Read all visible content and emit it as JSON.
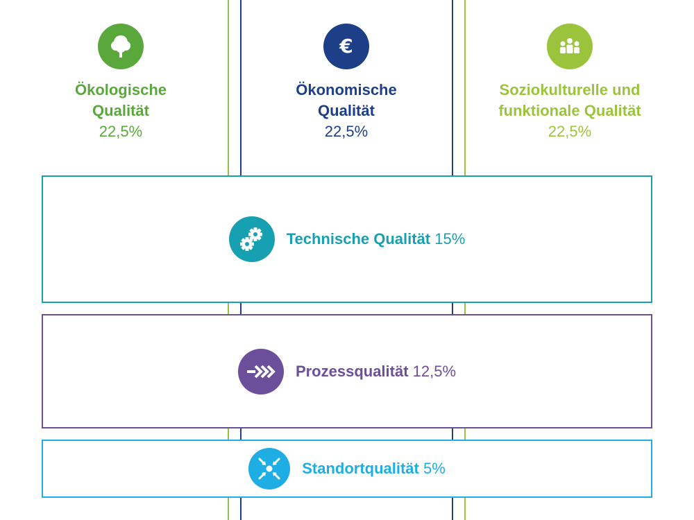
{
  "columns": [
    {
      "title_line1": "Ökologische",
      "title_line2": "Qualität",
      "percent": "22,5%",
      "icon": "tree-icon",
      "color": "#5aa83c"
    },
    {
      "title_line1": "Ökonomische",
      "title_line2": "Qualität",
      "percent": "22,5%",
      "icon": "euro-icon",
      "color": "#1c3f88"
    },
    {
      "title_line1": "Soziokulturelle und",
      "title_line2": "funktionale Qualität",
      "percent": "22,5%",
      "icon": "people-icon",
      "color": "#9bc43c"
    }
  ],
  "bands": [
    {
      "title": "Technische Qualität",
      "percent": "15%",
      "icon": "gears-icon",
      "color": "#17a0b1"
    },
    {
      "title": "Prozessqualität",
      "percent": "12,5%",
      "icon": "arrows-icon",
      "color": "#6b4f9b"
    },
    {
      "title": "Standortqualität",
      "percent": "5%",
      "icon": "location-arrows-icon",
      "color": "#1eaee4"
    }
  ]
}
